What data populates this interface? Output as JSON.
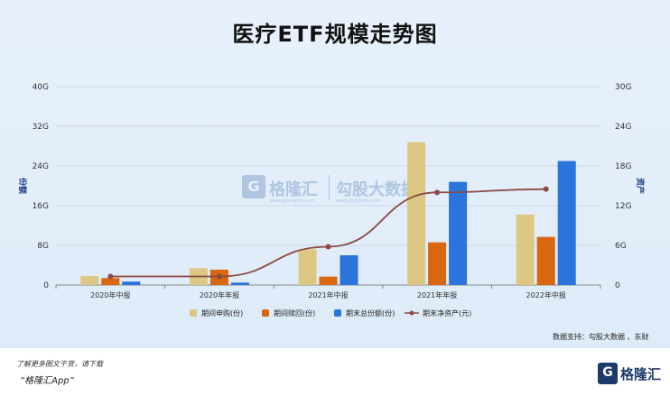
{
  "title": "医疗ETF规模走势图",
  "chart_data": {
    "type": "bar",
    "title": "医疗ETF规模走势图",
    "categories": [
      "2020年中报",
      "2020年年报",
      "2021年中报",
      "2021年年报",
      "2022年中报"
    ],
    "ylabel_left": "份额",
    "ylabel_right": "资产",
    "yticks_left": [
      "0",
      "8G",
      "16G",
      "24G",
      "32G",
      "40G"
    ],
    "yticks_right": [
      "0",
      "6G",
      "12G",
      "18G",
      "24G",
      "30G"
    ],
    "ylim_left": [
      0,
      40
    ],
    "ylim_right": [
      0,
      30
    ],
    "unit": "G",
    "grid": true,
    "legend_position": "bottom",
    "series": [
      {
        "name": "期间申购(份)",
        "type": "bar",
        "axis": "left",
        "color": "#dcc882",
        "values": [
          1.8,
          3.4,
          7.2,
          28.8,
          14.2
        ]
      },
      {
        "name": "期间赎回(份)",
        "type": "bar",
        "axis": "left",
        "color": "#d9670e",
        "values": [
          1.4,
          3.1,
          1.7,
          8.6,
          9.7
        ]
      },
      {
        "name": "期末总份额(份)",
        "type": "bar",
        "axis": "left",
        "color": "#2a74dc",
        "values": [
          0.7,
          0.5,
          6.0,
          20.8,
          25.0
        ]
      },
      {
        "name": "期末净资产(元)",
        "type": "line",
        "axis": "right",
        "color": "#8b4a45",
        "values": [
          1.3,
          1.3,
          5.8,
          14.0,
          14.5
        ]
      }
    ]
  },
  "watermark": {
    "brand1": "格隆汇",
    "brand2": "勾股大数据",
    "sub1": "www.gelonghui.com",
    "sub2": "www.gogudata.com"
  },
  "source": "数据支持：勾股大数据 、东财",
  "footer": {
    "promo_line1": "了解更多图文干货，请下载",
    "promo_line2": "“格隆汇App”",
    "logo_letter": "G",
    "logo_text": "格隆汇"
  },
  "colors": {
    "background": "#e3eefa",
    "axis": "#999999",
    "grid": "#cfd8e3",
    "title": "#111111"
  }
}
